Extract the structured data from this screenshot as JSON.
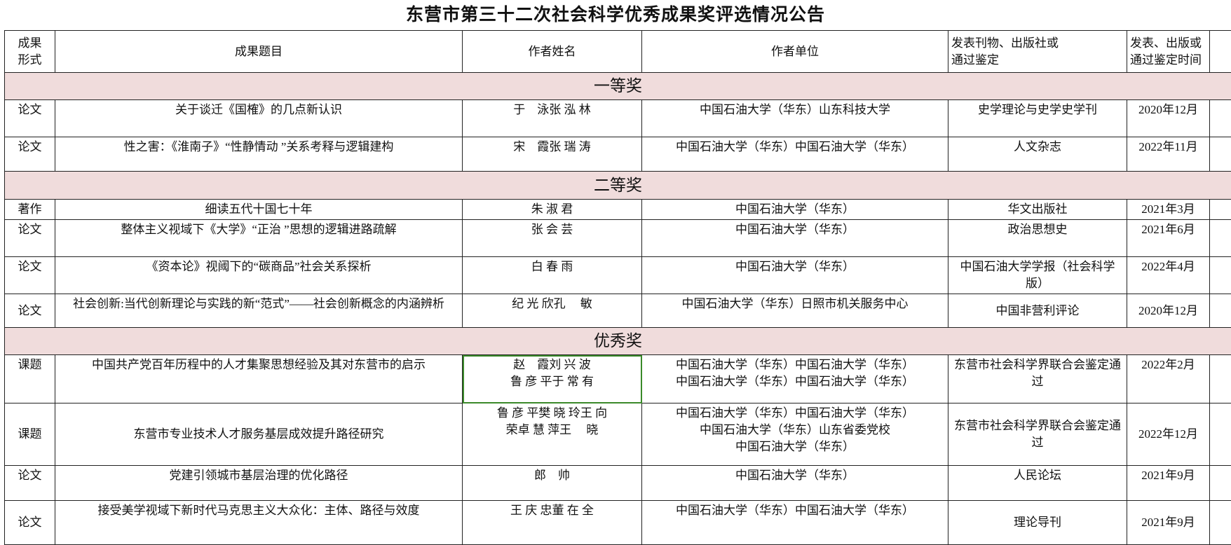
{
  "title": "东营市第三十二次社会科学优秀成果奖评选情况公告",
  "headers": [
    "成果\n形式",
    "成果题目",
    "作者姓名",
    "作者单位",
    "发表刊物、出版社或\n通过鉴定",
    "发表、出版或\n通过鉴定时间"
  ],
  "sections": [
    {
      "label": "一等奖",
      "rows": [
        {
          "type": "论文",
          "title": "关于谈迁《国榷》的几点新认识",
          "authors": "于　泳张 泓 林",
          "unit": "中国石油大学（华东）山东科技大学",
          "publisher": "史学理论与史学史学刊",
          "date": "2020年12月"
        },
        {
          "type": "论文",
          "title": "性之害：《淮南子》“性静情动 ”关系考释与逻辑建构",
          "authors": "宋　霞张 瑞 涛",
          "unit": "中国石油大学（华东）中国石油大学（华东）",
          "publisher": "人文杂志",
          "date": "2022年11月"
        }
      ]
    },
    {
      "label": "二等奖",
      "rows": [
        {
          "type": "著作",
          "title": "细读五代十国七十年",
          "authors": "朱 淑 君",
          "unit": "中国石油大学（华东）",
          "publisher": "华文出版社",
          "date": "2021年3月"
        },
        {
          "type": "论文",
          "title": "整体主义视域下《大学》“正治 ”思想的逻辑进路疏解",
          "authors": "张 会 芸",
          "unit": "中国石油大学（华东）",
          "publisher": "政治思想史",
          "date": "2021年6月"
        },
        {
          "type": "论文",
          "title": "《资本论》视阈下的“碳商品”社会关系探析",
          "authors": "白 春 雨",
          "unit": "中国石油大学（华东）",
          "publisher": "中国石油大学学报（社会科学版）",
          "date": "2022年4月"
        },
        {
          "type": "论文",
          "title": "社会创新:当代创新理论与实践的新“范式”——社会创新概念的内涵辨析",
          "authors": "纪 光 欣孔　 敏",
          "unit": "中国石油大学（华东）日照市机关服务中心",
          "publisher": "中国非营利评论",
          "date": "2020年12月"
        }
      ]
    },
    {
      "label": "优秀奖",
      "rows": [
        {
          "type": "课题",
          "title": "中国共产党百年历程中的人才集聚思想经验及其对东营市的启示",
          "authors": "赵　霞刘 兴 波\n鲁 彦 平于 常 有",
          "unit": "中国石油大学（华东）中国石油大学（华东）\n中国石油大学（华东）中国石油大学（华东）",
          "publisher": "东营市社会科学界联合会鉴定通过",
          "date": "2022年2月"
        },
        {
          "type": "课题",
          "title": "东营市专业技术人才服务基层成效提升路径研究",
          "authors": "鲁 彦 平樊 晓 玲王 向\n荣卓 慧 萍王　 晓",
          "unit": "中国石油大学（华东）中国石油大学（华东）\n中国石油大学（华东）山东省委党校\n中国石油大学（华东）",
          "publisher": "东营市社会科学界联合会鉴定通过",
          "date": "2022年12月"
        },
        {
          "type": "论文",
          "title": "党建引领城市基层治理的优化路径",
          "authors": "郎　帅",
          "unit": "中国石油大学（华东）",
          "publisher": "人民论坛",
          "date": "2021年9月"
        },
        {
          "type": "论文",
          "title": "接受美学视域下新时代马克思主义大众化：主体、路径与效度",
          "authors": "王 庆 忠董 在 全",
          "unit": "中国石油大学（华东）中国石油大学（华东）",
          "publisher": "理论导刊",
          "date": "2021年9月"
        }
      ]
    }
  ],
  "colors": {
    "band": "#f0dcdc",
    "selection": "#3b8a2a",
    "border": "#222222"
  }
}
